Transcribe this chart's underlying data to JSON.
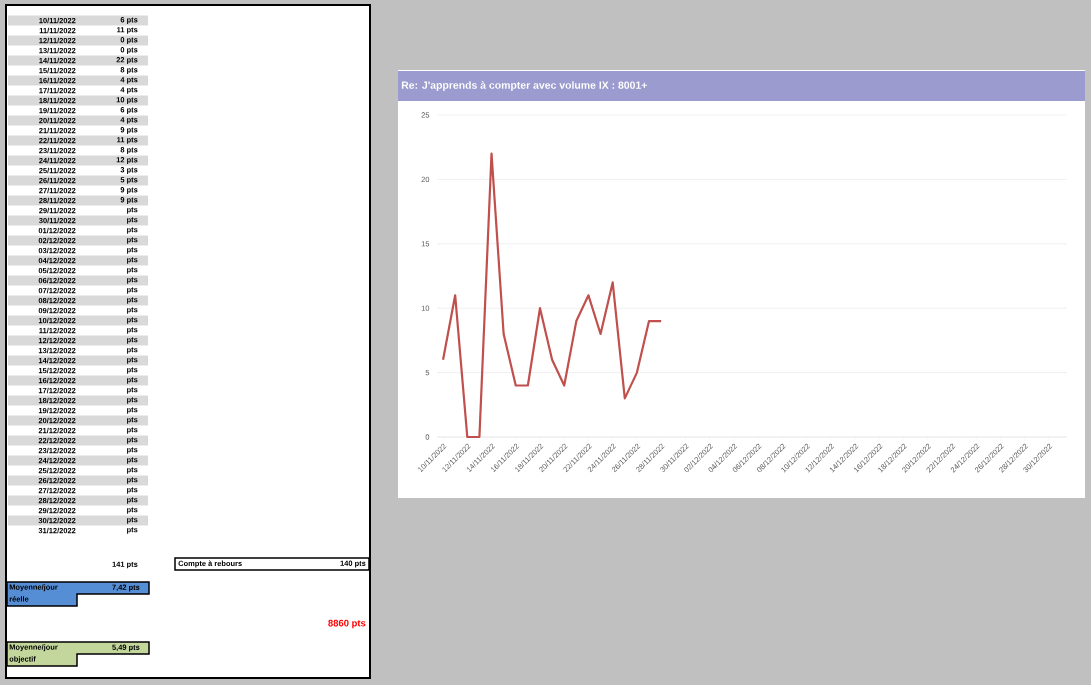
{
  "chart_data": {
    "type": "line",
    "title": "Re: J'apprends à compter avec volume IX : 8001+",
    "categories": [
      "10/11/2022",
      null,
      "12/11/2022",
      null,
      "14/11/2022",
      null,
      "16/11/2022",
      null,
      "18/11/2022",
      null,
      "20/11/2022",
      null,
      "22/11/2022",
      null,
      "24/11/2022",
      null,
      "26/11/2022",
      null,
      "28/11/2022",
      null,
      "30/11/2022",
      null,
      "02/12/2022",
      null,
      "04/12/2022",
      null,
      "06/12/2022",
      null,
      "08/12/2022",
      null,
      "10/12/2022",
      null,
      "12/12/2022",
      null,
      "14/12/2022",
      null,
      "16/12/2022",
      null,
      "18/12/2022",
      null,
      "20/12/2022",
      null,
      "22/12/2022",
      null,
      "24/12/2022",
      null,
      "26/12/2022",
      null,
      "28/12/2022",
      null,
      "30/12/2022",
      null
    ],
    "values": [
      6,
      11,
      0,
      0,
      22,
      8,
      4,
      4,
      10,
      6,
      4,
      9,
      11,
      8,
      12,
      3,
      5,
      9,
      9,
      null,
      null,
      null,
      null,
      null,
      null,
      null,
      null,
      null,
      null,
      null,
      null,
      null,
      null,
      null,
      null,
      null,
      null,
      null,
      null,
      null,
      null,
      null,
      null,
      null,
      null,
      null,
      null,
      null,
      null,
      null,
      null,
      null
    ],
    "color": "#c0504d",
    "ylim": [
      0,
      25
    ],
    "yticks": [
      0,
      5,
      10,
      15,
      20,
      25
    ],
    "grid": "y",
    "marker": "none",
    "annotations": [
      "141 pts",
      "Compte à rebours",
      "140 pts",
      "Moyenne/jour réelle",
      "7,42 pts",
      "8860 pts",
      "Moyenne/jour objectif",
      "5,49 pts",
      "10/11/2022",
      "6 pts",
      "11/11/2022",
      "11 pts",
      "12/11/2022",
      "0 pts",
      "13/11/2022",
      "0 pts",
      "14/11/2022",
      "22 pts",
      "15/11/2022",
      "8 pts",
      "16/11/2022",
      "4 pts",
      "17/11/2022",
      "4 pts",
      "18/11/2022",
      "10 pts",
      "19/11/2022",
      "6 pts",
      "20/11/2022",
      "4 pts",
      "21/11/2022",
      "9 pts",
      "22/11/2022",
      "11 pts",
      "23/11/2022",
      "8 pts",
      "24/11/2022",
      "12 pts",
      "25/11/2022",
      "3 pts",
      "26/11/2022",
      "5 pts",
      "27/11/2022",
      "9 pts",
      "28/11/2022",
      "9 pts",
      "29/11/2022",
      "pts",
      "30/11/2022",
      "pts",
      "01/12/2022",
      "pts",
      "02/12/2022",
      "pts",
      "03/12/2022",
      "pts",
      "04/12/2022",
      "pts",
      "05/12/2022",
      "pts",
      "06/12/2022",
      "pts",
      "07/12/2022",
      "pts",
      "08/12/2022",
      "pts",
      "09/12/2022",
      "pts",
      "10/12/2022",
      "pts",
      "11/12/2022",
      "pts",
      "12/12/2022",
      "pts",
      "13/12/2022",
      "pts",
      "14/12/2022",
      "pts",
      "15/12/2022",
      "pts",
      "16/12/2022",
      "pts",
      "17/12/2022",
      "pts",
      "18/12/2022",
      "pts",
      "19/12/2022",
      "pts",
      "20/12/2022",
      "pts",
      "21/12/2022",
      "pts",
      "22/12/2022",
      "pts",
      "23/12/2022",
      "pts",
      "24/12/2022",
      "pts",
      "25/12/2022",
      "pts",
      "26/12/2022",
      "pts",
      "27/12/2022",
      "pts",
      "28/12/2022",
      "pts",
      "29/12/2022",
      "pts",
      "30/12/2022",
      "pts",
      "31/12/2022",
      "pts"
    ]
  }
}
